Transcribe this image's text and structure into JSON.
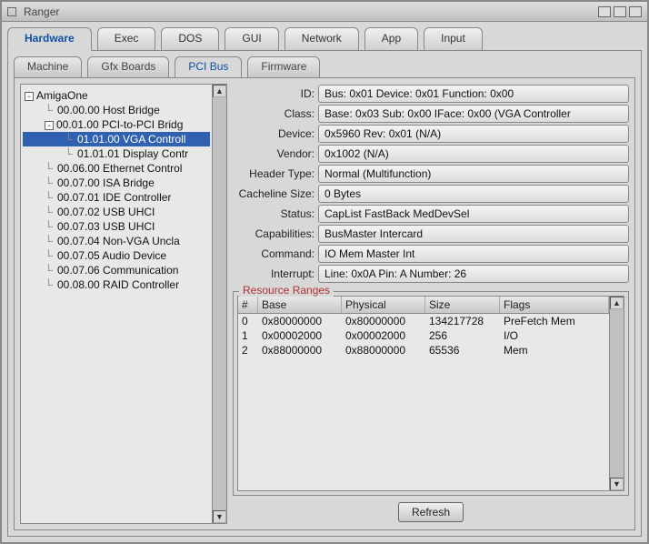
{
  "window": {
    "title": "Ranger"
  },
  "mainTabs": [
    "Hardware",
    "Exec",
    "DOS",
    "GUI",
    "Network",
    "App",
    "Input"
  ],
  "mainTabActive": 0,
  "subTabs": [
    "Machine",
    "Gfx Boards",
    "PCI Bus",
    "Firmware"
  ],
  "subTabActive": 2,
  "tree": [
    {
      "indent": 0,
      "toggle": "-",
      "label": "AmigaOne",
      "sel": false
    },
    {
      "indent": 1,
      "label": "00.00.00 Host Bridge",
      "sel": false
    },
    {
      "indent": 1,
      "toggle": "-",
      "label": "00.01.00 PCI-to-PCI Bridg",
      "sel": false
    },
    {
      "indent": 2,
      "label": "01.01.00 VGA Controll",
      "sel": true
    },
    {
      "indent": 2,
      "label": "01.01.01 Display Contr",
      "sel": false
    },
    {
      "indent": 1,
      "label": "00.06.00 Ethernet Control",
      "sel": false
    },
    {
      "indent": 1,
      "label": "00.07.00 ISA Bridge",
      "sel": false
    },
    {
      "indent": 1,
      "label": "00.07.01 IDE Controller",
      "sel": false
    },
    {
      "indent": 1,
      "label": "00.07.02 USB UHCI",
      "sel": false
    },
    {
      "indent": 1,
      "label": "00.07.03 USB UHCI",
      "sel": false
    },
    {
      "indent": 1,
      "label": "00.07.04 Non-VGA Uncla",
      "sel": false
    },
    {
      "indent": 1,
      "label": "00.07.05 Audio Device",
      "sel": false
    },
    {
      "indent": 1,
      "label": "00.07.06 Communication",
      "sel": false
    },
    {
      "indent": 1,
      "label": "00.08.00 RAID Controller",
      "sel": false
    }
  ],
  "fields": [
    {
      "label": "ID:",
      "value": "Bus: 0x01 Device: 0x01 Function: 0x00"
    },
    {
      "label": "Class:",
      "value": "Base: 0x03 Sub: 0x00 IFace: 0x00 (VGA Controller"
    },
    {
      "label": "Device:",
      "value": "0x5960 Rev: 0x01 (N/A)"
    },
    {
      "label": "Vendor:",
      "value": "0x1002 (N/A)"
    },
    {
      "label": "Header Type:",
      "value": "Normal (Multifunction)"
    },
    {
      "label": "Cacheline Size:",
      "value": "0 Bytes"
    },
    {
      "label": "Status:",
      "value": "CapList FastBack MedDevSel"
    },
    {
      "label": "Capabilities:",
      "value": "BusMaster Intercard"
    },
    {
      "label": "Command:",
      "value": "IO Mem Master Int"
    },
    {
      "label": "Interrupt:",
      "value": "Line: 0x0A Pin: A Number: 26"
    }
  ],
  "resourceGroup": {
    "title": "Resource Ranges",
    "columns": [
      "#",
      "Base",
      "Physical",
      "Size",
      "Flags"
    ],
    "rows": [
      [
        "0",
        "0x80000000",
        "0x80000000",
        "134217728",
        "PreFetch Mem"
      ],
      [
        "1",
        "0x00002000",
        "0x00002000",
        "256",
        "I/O"
      ],
      [
        "2",
        "0x88000000",
        "0x88000000",
        "65536",
        "Mem"
      ]
    ]
  },
  "buttons": {
    "refresh": "Refresh"
  },
  "colors": {
    "accent": "#1050a0",
    "selection": "#3060b0",
    "groupTitle": "#b03030",
    "panel": "#d8d8d8",
    "fieldBg": "#eaeaea"
  }
}
